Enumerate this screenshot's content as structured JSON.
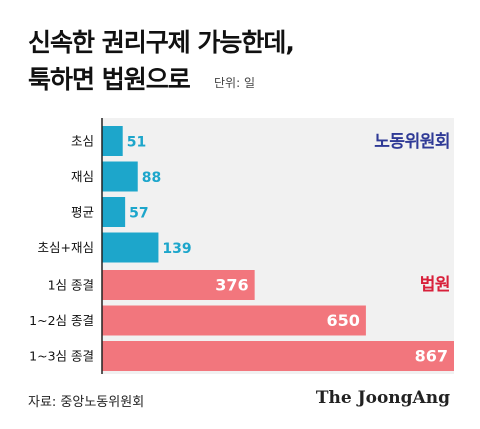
{
  "title_lines": [
    "신속한 권리구제 가능한데,",
    "툭하면 법원으로"
  ],
  "unit": "단위: 일",
  "source": "자료: 중앙노동위원회",
  "brand": "The JoongAng",
  "colors": {
    "group1": "#1da6cb",
    "group1_label": "#2f3a96",
    "group2": "#f2767d",
    "group2_label": "#d8203a",
    "panel": "#f1f1f1",
    "axis": "#222222"
  },
  "chart_data": {
    "type": "bar",
    "orientation": "horizontal",
    "groups": [
      {
        "name": "노동위원회",
        "categories": [
          "초심",
          "재심",
          "평균",
          "초심+재심"
        ],
        "values": [
          51,
          88,
          57,
          139
        ]
      },
      {
        "name": "법원",
        "categories": [
          "1심 종결",
          "1~2심 종결",
          "1~3심 종결"
        ],
        "values": [
          376,
          650,
          867
        ]
      }
    ],
    "xlim": [
      0,
      867
    ]
  }
}
